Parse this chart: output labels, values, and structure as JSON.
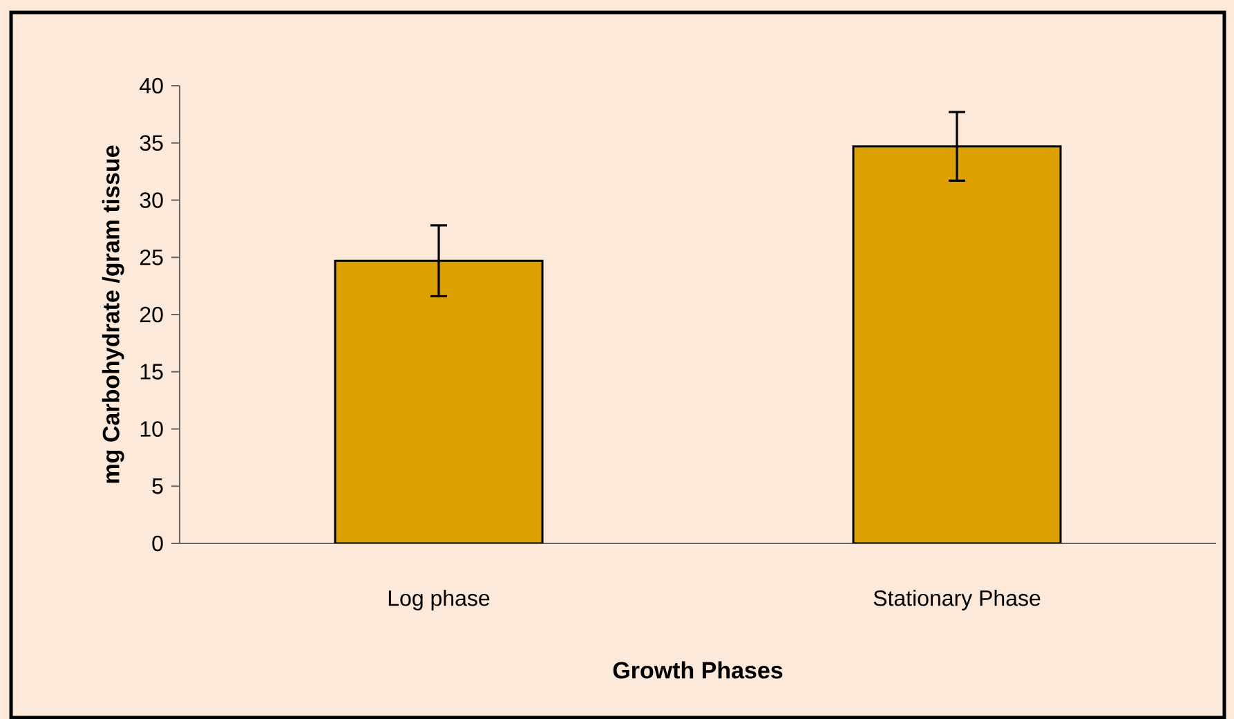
{
  "chart_data": {
    "type": "bar",
    "xlabel": "Growth Phases",
    "ylabel": "mg Carbohydrate /gram tissue",
    "categories": [
      "Log phase",
      "Stationary Phase"
    ],
    "values": [
      24.7,
      34.7
    ],
    "errors": [
      3.1,
      3.0
    ],
    "color": "#dca000",
    "ylim": [
      0,
      40
    ],
    "yticks": [
      0,
      5,
      10,
      15,
      20,
      25,
      30,
      35,
      40
    ]
  }
}
